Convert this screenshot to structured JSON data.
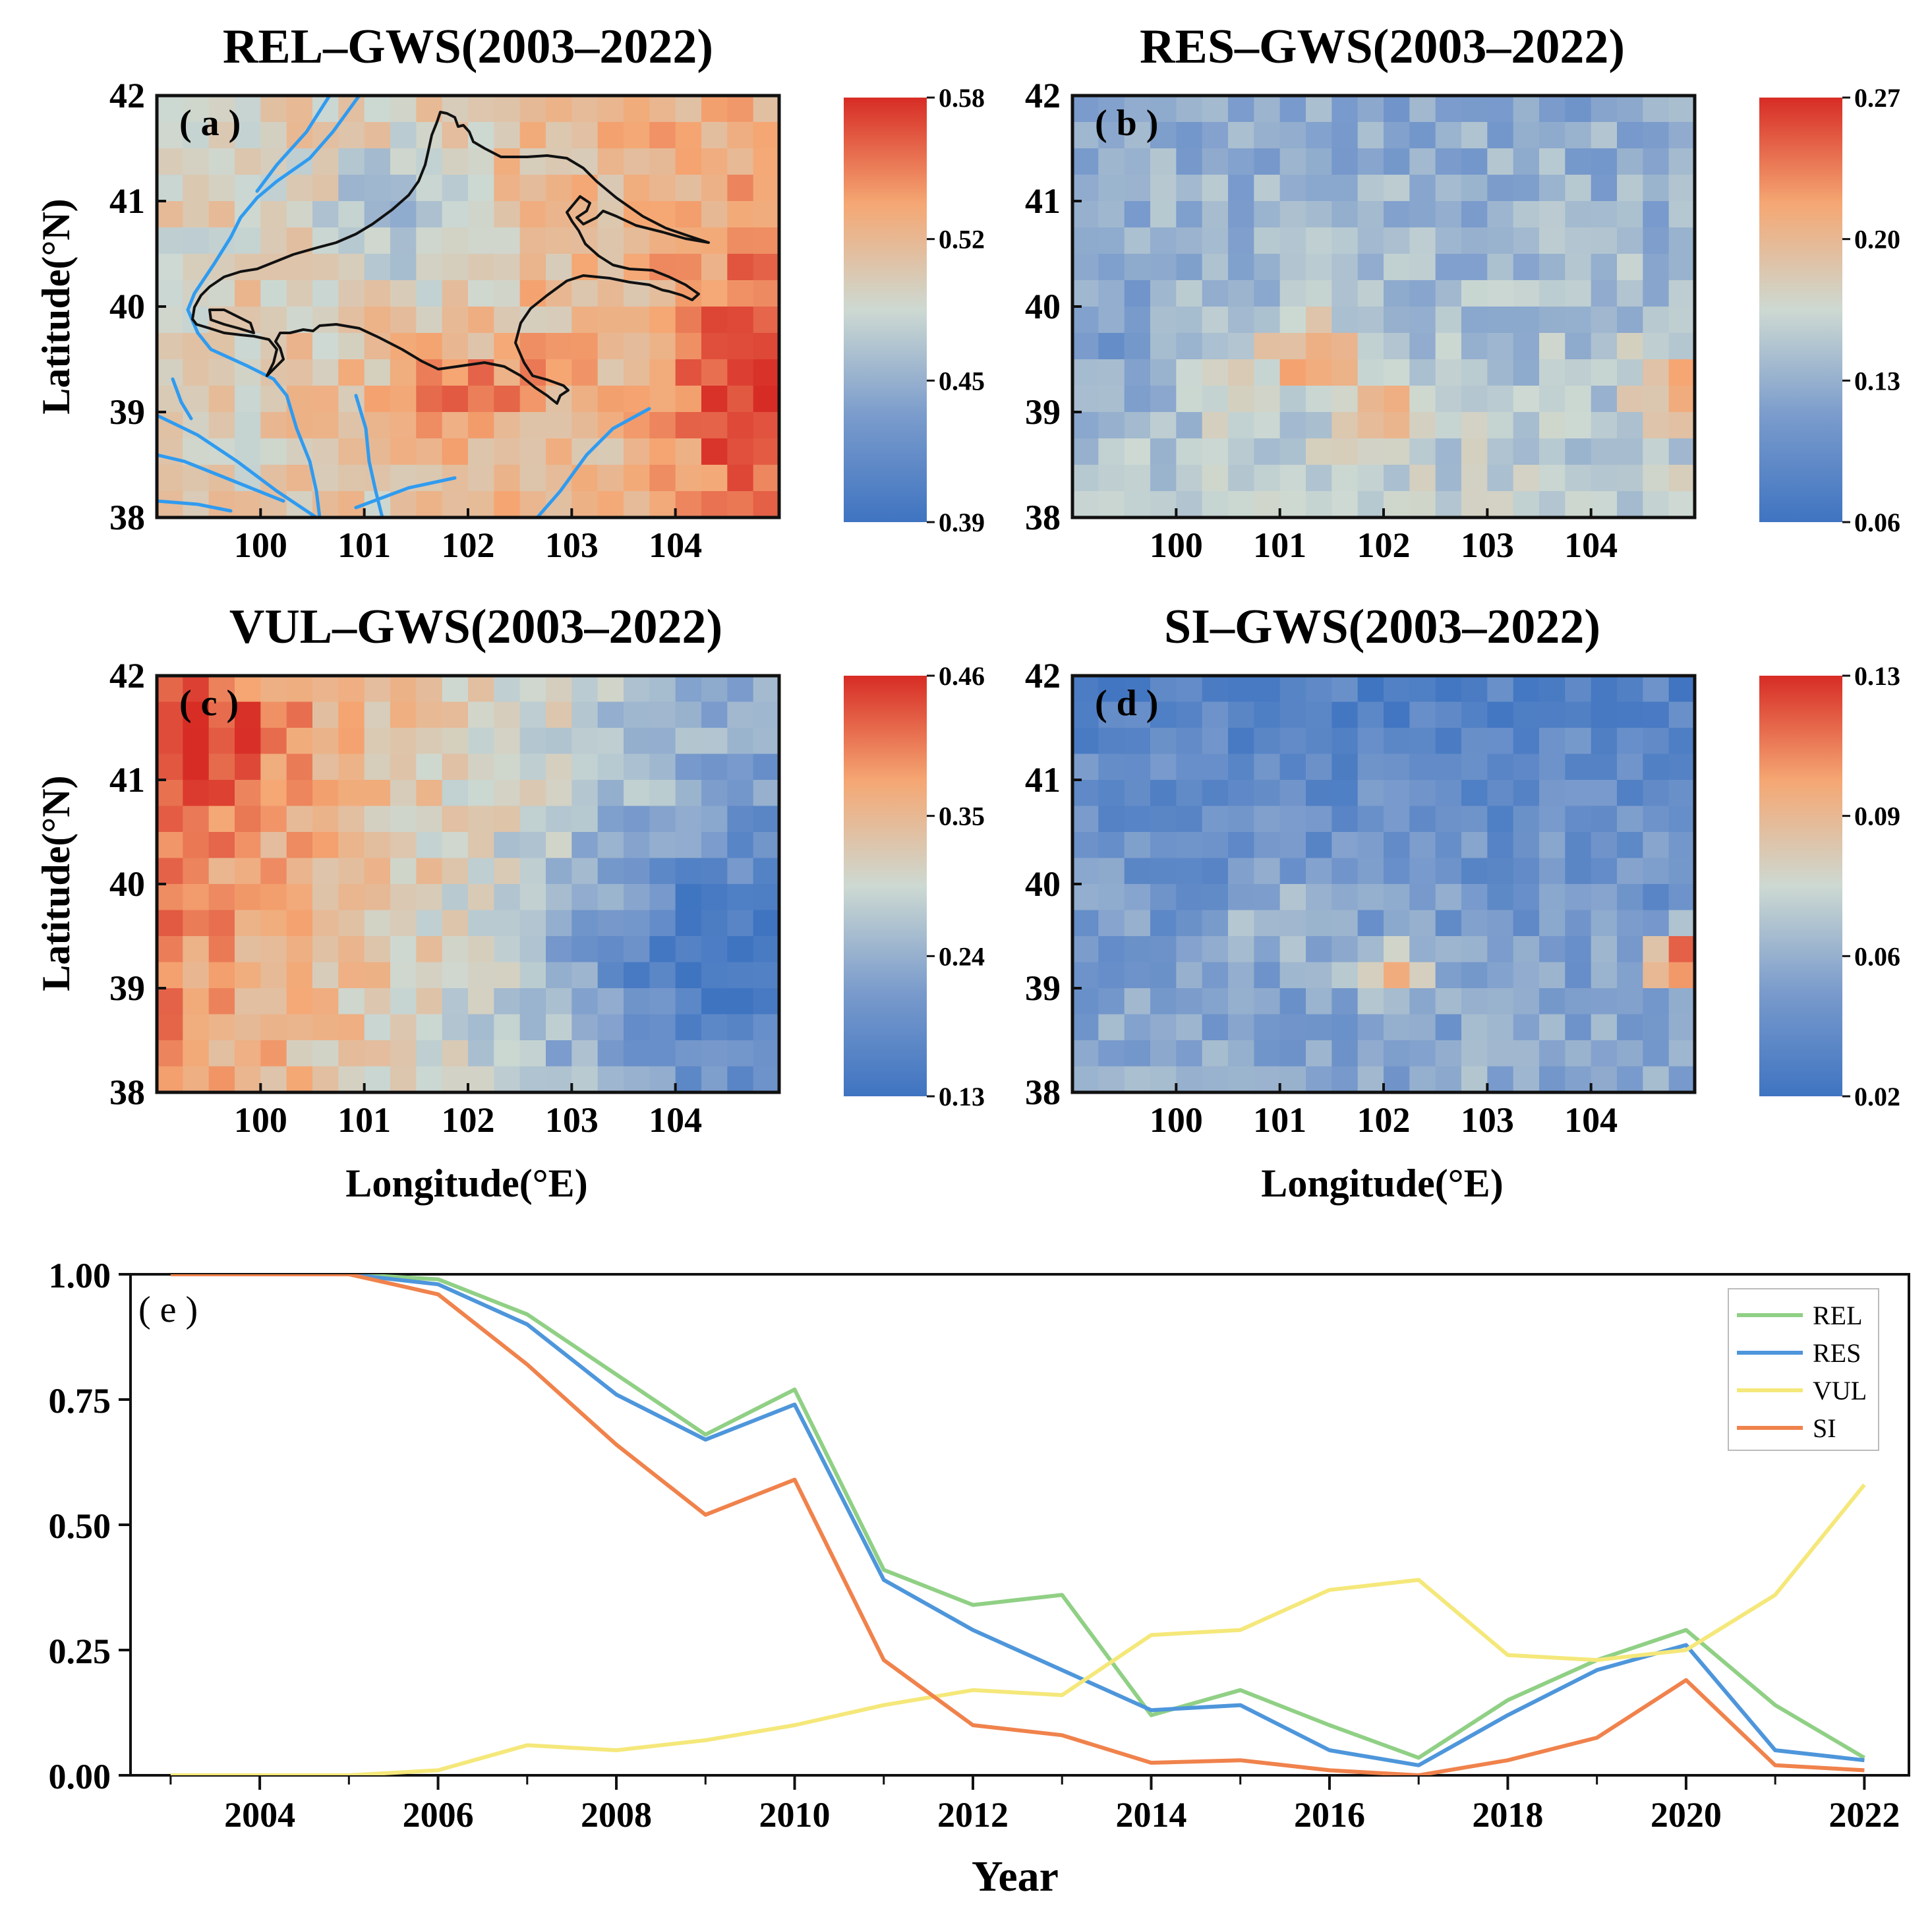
{
  "chart_data": [
    {
      "type": "heatmap",
      "panel": "a",
      "panel_label": "( a )",
      "title": "REL–GWS(2003–2022)",
      "xlabel": "",
      "ylabel": "Latitude(°N)",
      "x_ticks": [
        "100",
        "101",
        "102",
        "103",
        "104"
      ],
      "y_ticks": [
        "38",
        "39",
        "40",
        "41",
        "42"
      ],
      "xlim": [
        99,
        105
      ],
      "ylim": [
        38,
        42
      ],
      "colorbar_ticks": [
        "0.58",
        "0.52",
        "0.45",
        "0.39"
      ],
      "colorbar_range": [
        0.39,
        0.58
      ],
      "pattern": "rel",
      "seed": 11
    },
    {
      "type": "heatmap",
      "panel": "b",
      "panel_label": "( b )",
      "title": "RES–GWS(2003–2022)",
      "xlabel": "",
      "ylabel": "",
      "x_ticks": [
        "100",
        "101",
        "102",
        "103",
        "104"
      ],
      "y_ticks": [
        "38",
        "39",
        "40",
        "41",
        "42"
      ],
      "xlim": [
        99,
        105
      ],
      "ylim": [
        38,
        42
      ],
      "colorbar_ticks": [
        "0.27",
        "0.20",
        "0.13",
        "0.06"
      ],
      "colorbar_range": [
        0.06,
        0.27
      ],
      "pattern": "res",
      "seed": 23
    },
    {
      "type": "heatmap",
      "panel": "c",
      "panel_label": "( c )",
      "title": "VUL–GWS(2003–2022)",
      "xlabel": "Longitude(°E)",
      "ylabel": "Latitude(°N)",
      "x_ticks": [
        "100",
        "101",
        "102",
        "103",
        "104"
      ],
      "y_ticks": [
        "38",
        "39",
        "40",
        "41",
        "42"
      ],
      "xlim": [
        99,
        105
      ],
      "ylim": [
        38,
        42
      ],
      "colorbar_ticks": [
        "0.46",
        "0.35",
        "0.24",
        "0.13"
      ],
      "colorbar_range": [
        0.13,
        0.46
      ],
      "pattern": "vul",
      "seed": 37
    },
    {
      "type": "heatmap",
      "panel": "d",
      "panel_label": "( d )",
      "title": "SI–GWS(2003–2022)",
      "xlabel": "Longitude(°E)",
      "ylabel": "",
      "x_ticks": [
        "100",
        "101",
        "102",
        "103",
        "104"
      ],
      "y_ticks": [
        "38",
        "39",
        "40",
        "41",
        "42"
      ],
      "xlim": [
        99,
        105
      ],
      "ylim": [
        38,
        42
      ],
      "colorbar_ticks": [
        "0.13",
        "0.09",
        "0.06",
        "0.02"
      ],
      "colorbar_range": [
        0.02,
        0.13
      ],
      "pattern": "si",
      "seed": 53
    },
    {
      "type": "line",
      "panel": "e",
      "panel_label": "( e )",
      "title": "",
      "xlabel": "Year",
      "ylabel": "",
      "x": [
        2003,
        2004,
        2005,
        2006,
        2007,
        2008,
        2009,
        2010,
        2011,
        2012,
        2013,
        2014,
        2015,
        2016,
        2017,
        2018,
        2019,
        2020,
        2021,
        2022
      ],
      "x_ticks": [
        "2004",
        "2006",
        "2008",
        "2010",
        "2012",
        "2014",
        "2016",
        "2018",
        "2020",
        "2022"
      ],
      "y_ticks": [
        "0.00",
        "0.25",
        "0.50",
        "0.75",
        "1.00"
      ],
      "xlim": [
        2002.55,
        2022.5
      ],
      "ylim": [
        0,
        1
      ],
      "legend_position": "top-right",
      "series": [
        {
          "name": "REL",
          "color": "#90d085",
          "values": [
            1.0,
            1.0,
            1.0,
            0.99,
            0.92,
            0.8,
            0.68,
            0.77,
            0.41,
            0.34,
            0.36,
            0.12,
            0.17,
            0.1,
            0.035,
            0.15,
            0.23,
            0.29,
            0.14,
            0.035
          ]
        },
        {
          "name": "RES",
          "color": "#4e96db",
          "values": [
            1.0,
            1.0,
            1.0,
            0.98,
            0.9,
            0.76,
            0.67,
            0.74,
            0.39,
            0.29,
            0.21,
            0.13,
            0.14,
            0.05,
            0.02,
            0.12,
            0.21,
            0.26,
            0.05,
            0.03
          ]
        },
        {
          "name": "VUL",
          "color": "#f5e87a",
          "values": [
            0.0,
            0.0,
            0.0,
            0.01,
            0.06,
            0.05,
            0.07,
            0.1,
            0.14,
            0.17,
            0.16,
            0.28,
            0.29,
            0.37,
            0.39,
            0.24,
            0.23,
            0.25,
            0.36,
            0.58
          ]
        },
        {
          "name": "SI",
          "color": "#f0824c",
          "values": [
            1.0,
            1.0,
            1.0,
            0.96,
            0.82,
            0.66,
            0.52,
            0.59,
            0.23,
            0.1,
            0.08,
            0.025,
            0.03,
            0.01,
            0.0,
            0.03,
            0.075,
            0.19,
            0.02,
            0.01
          ]
        }
      ]
    }
  ]
}
